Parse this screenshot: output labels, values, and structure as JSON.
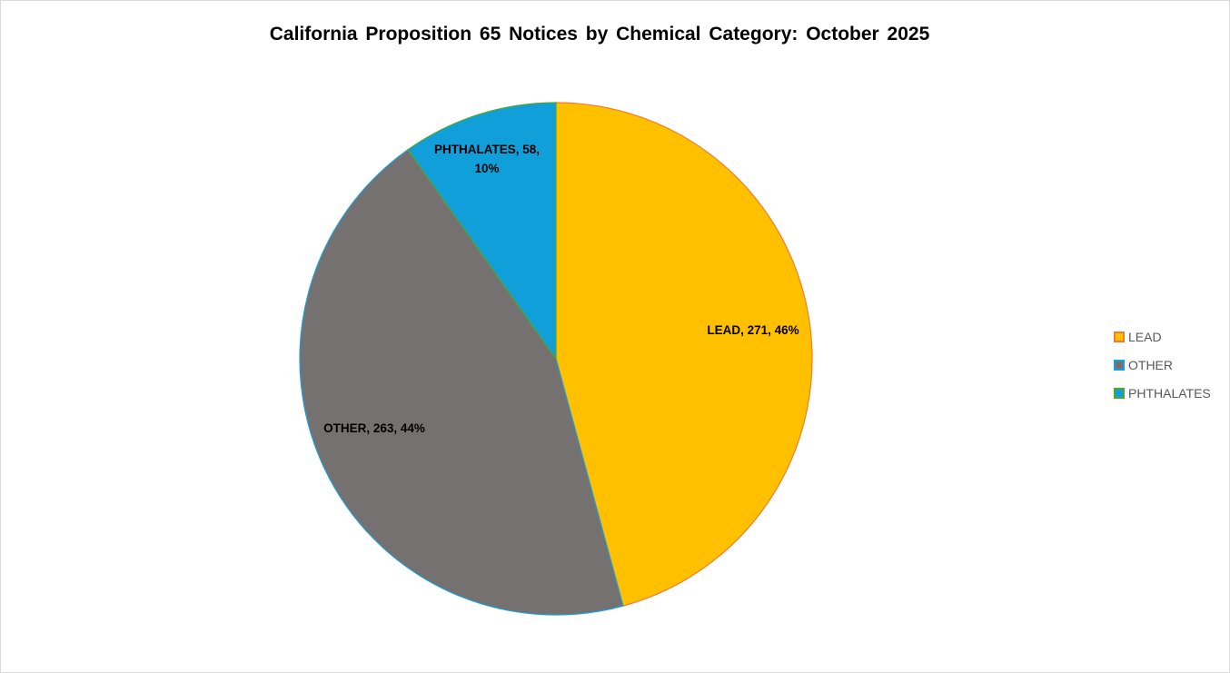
{
  "chart_data": {
    "type": "pie",
    "title": "California Proposition 65 Notices by Chemical Category: October 2025",
    "slices": [
      {
        "name": "LEAD",
        "value": 271,
        "percent_label": "46%",
        "label": "LEAD, 271, 46%",
        "fill": "#FFC000",
        "border": "#ED7D31"
      },
      {
        "name": "OTHER",
        "value": 263,
        "percent_label": "44%",
        "label": "OTHER, 263, 44%",
        "fill": "#767171",
        "border": "#1A9FD8"
      },
      {
        "name": "PHTHALATES",
        "value": 58,
        "percent_label": "10%",
        "label_lines": [
          "PHTHALATES, 58,",
          "10%"
        ],
        "fill": "#109FD8",
        "border": "#4EA72E"
      }
    ],
    "start_angle_deg": 0,
    "direction": "clockwise",
    "legend_position": "right"
  }
}
